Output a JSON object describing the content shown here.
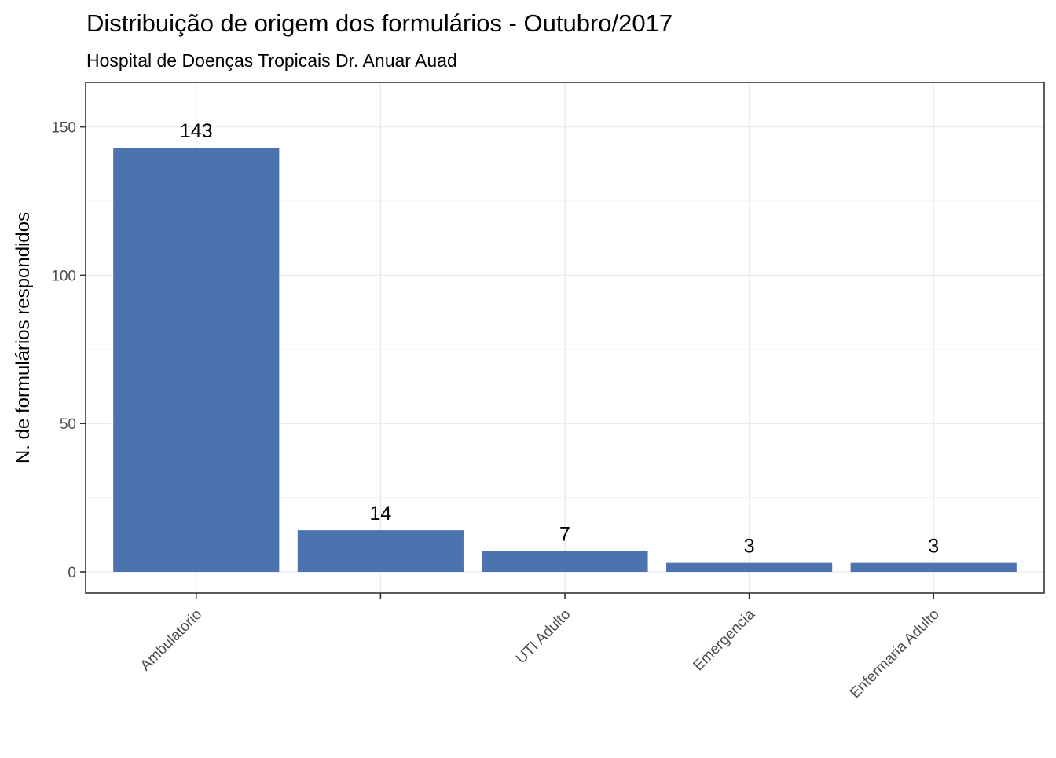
{
  "chart_data": {
    "type": "bar",
    "title": "Distribuição de origem dos formulários - Outubro/2017",
    "subtitle": "Hospital de Doenças Tropicais Dr. Anuar Auad",
    "xlabel": "",
    "ylabel": "N. de formulários respondidos",
    "categories": [
      "Ambulatório",
      "",
      "UTI Adulto",
      "Emergencia",
      "Enfermaria Adulto"
    ],
    "values": [
      143,
      14,
      7,
      3,
      3
    ],
    "data_labels": [
      "143",
      "14",
      "7",
      "3",
      "3"
    ],
    "ylim": [
      -7.15,
      165
    ],
    "y_ticks": [
      0,
      50,
      100,
      150
    ],
    "y_tick_labels": [
      "0",
      "50",
      "100",
      "150"
    ],
    "bar_color": "#4c72b0",
    "grid": true,
    "legend": "none"
  }
}
